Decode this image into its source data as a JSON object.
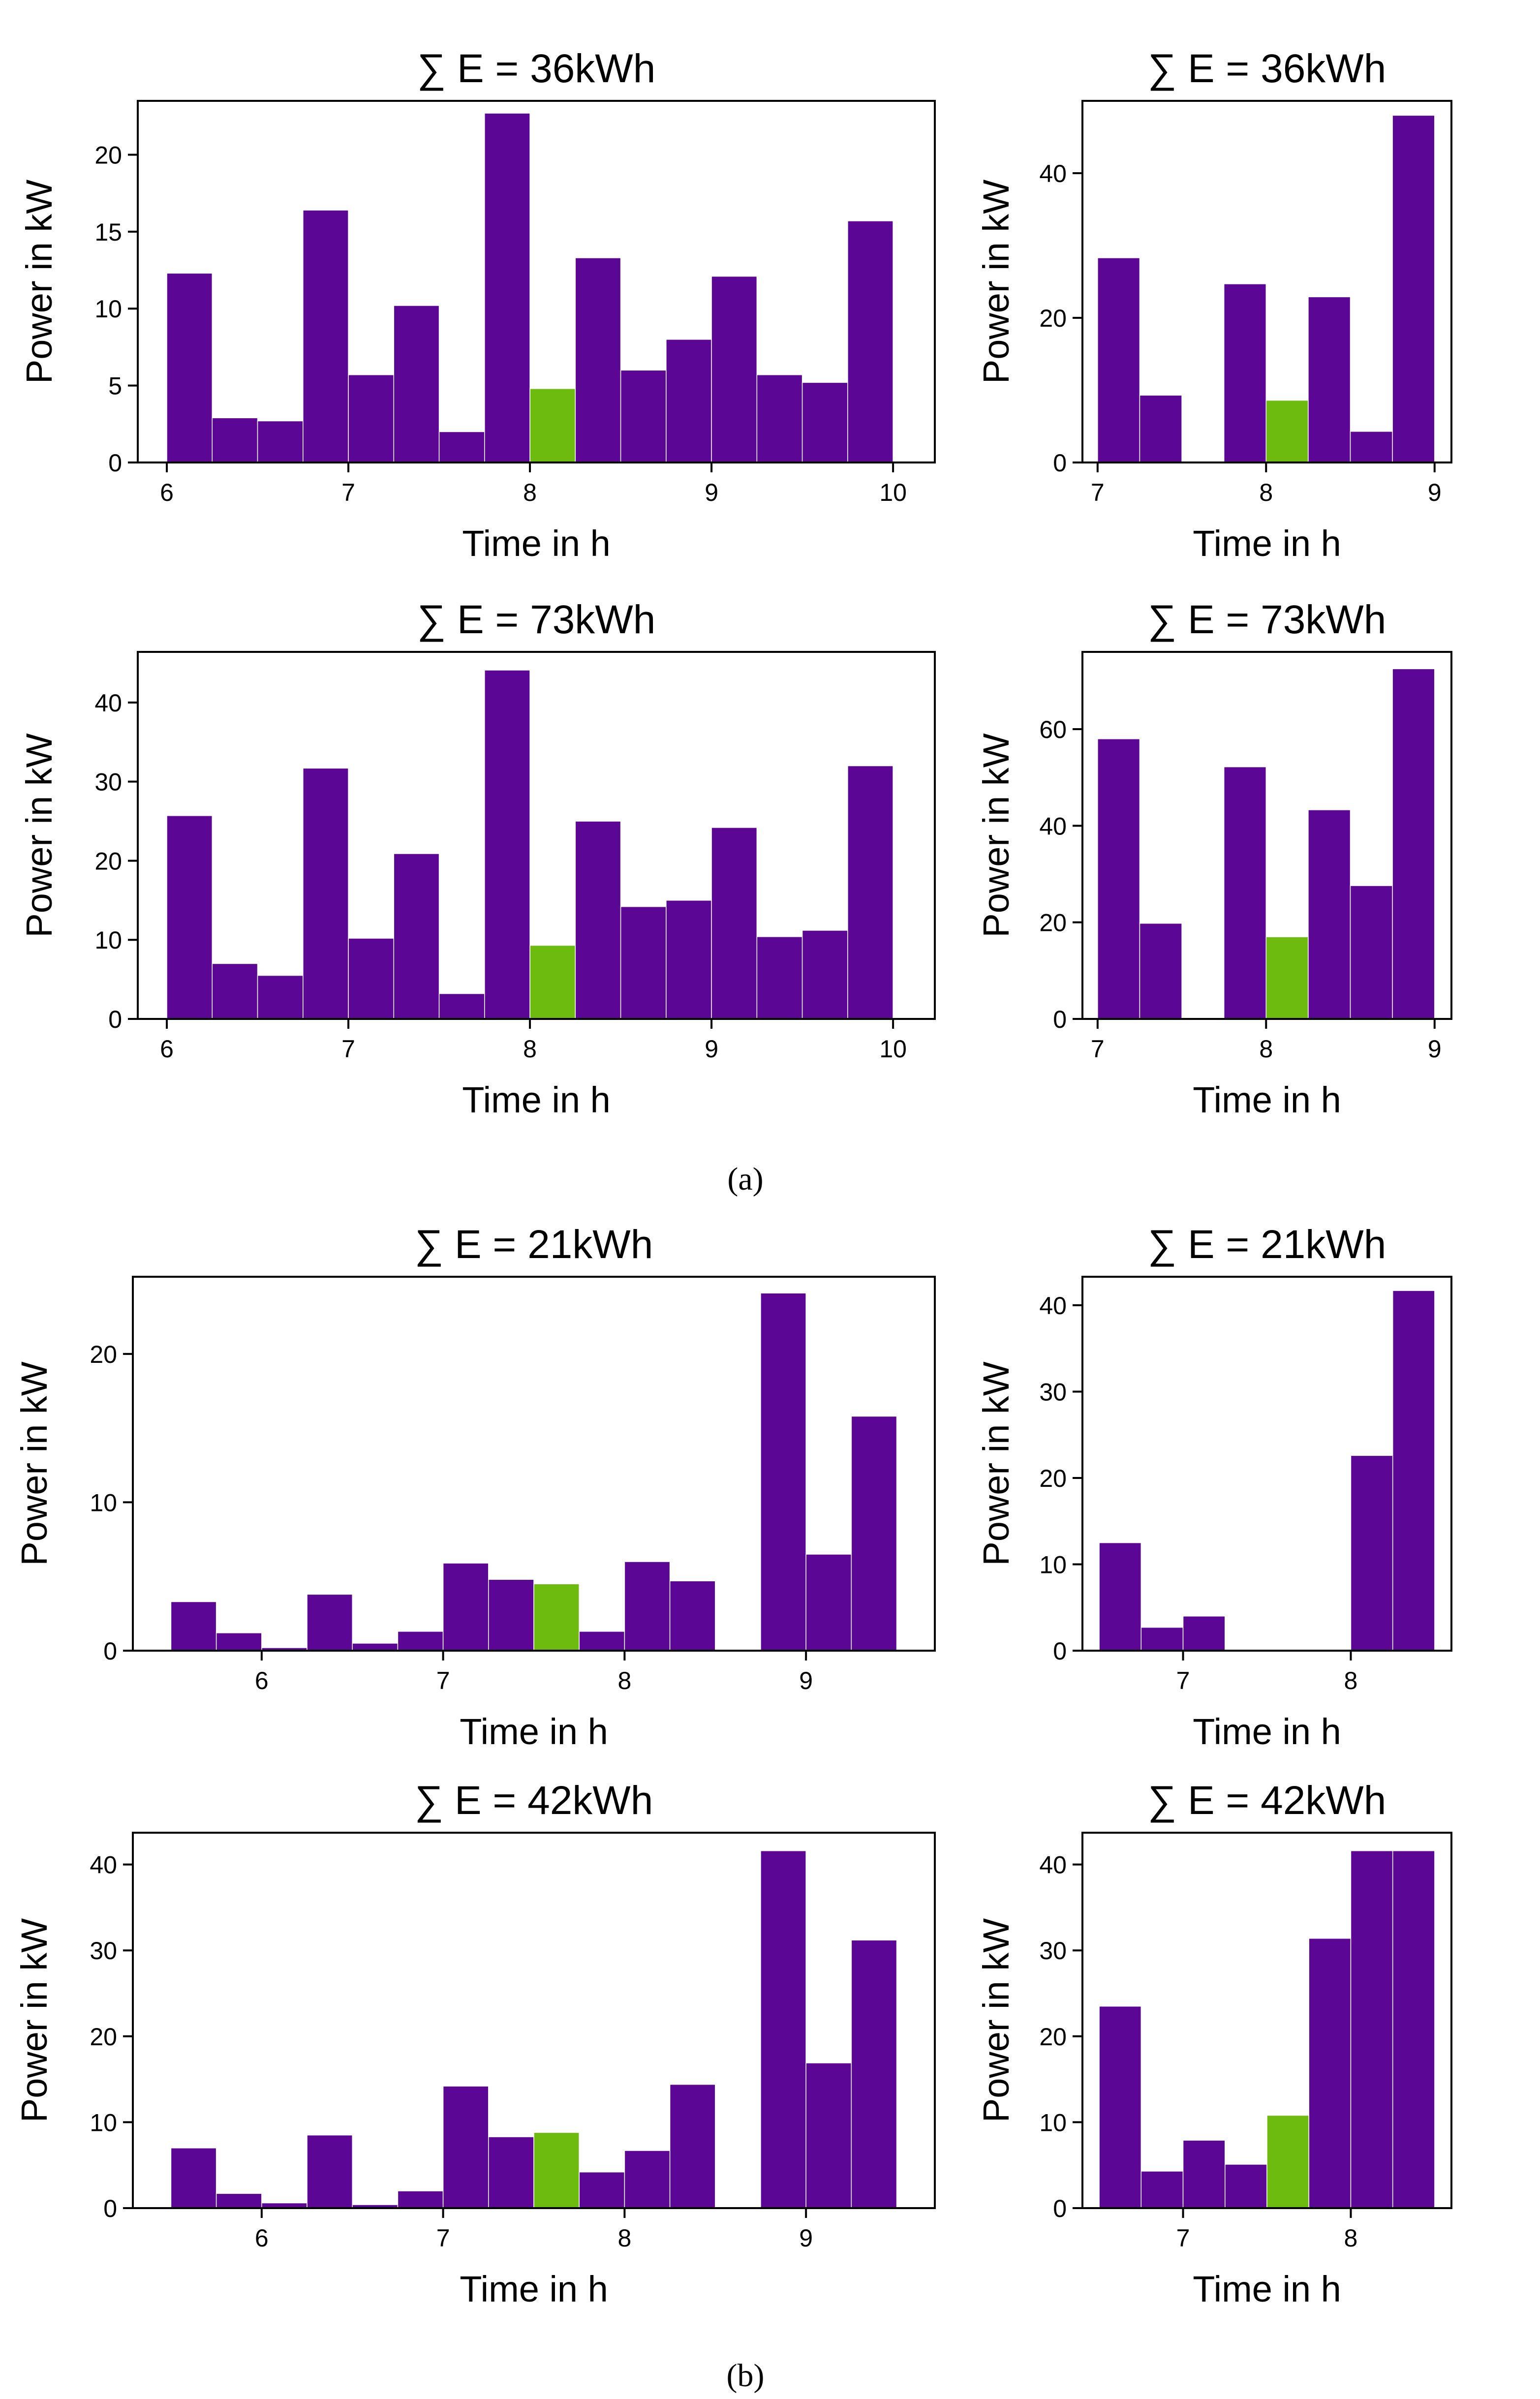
{
  "colors": {
    "bar": "#5c0696",
    "highlight": "#6dbb0e",
    "axis": "#000000",
    "background": "#ffffff"
  },
  "panel_captions": {
    "a": "(a)",
    "b": "(b)"
  },
  "chart_data": [
    {
      "type": "bar",
      "panel": "a",
      "title": "∑ E = 36kWh",
      "xlabel": "Time in h",
      "ylabel": "Power in kW",
      "xlim": [
        5.84,
        10.23
      ],
      "ylim": [
        0,
        23.5
      ],
      "xticks": [
        6,
        7,
        8,
        9,
        10
      ],
      "yticks": [
        0,
        5,
        10,
        15,
        20
      ],
      "bin_width": 0.25,
      "highlight_index": 8,
      "x": [
        6.0,
        6.25,
        6.5,
        6.75,
        7.0,
        7.25,
        7.5,
        7.75,
        8.0,
        8.25,
        8.5,
        8.75,
        9.0,
        9.25,
        9.5,
        9.75
      ],
      "values": [
        12.3,
        2.9,
        2.7,
        16.4,
        5.7,
        10.2,
        2.0,
        22.7,
        4.8,
        13.3,
        6.0,
        8.0,
        12.1,
        5.7,
        5.2,
        15.7
      ]
    },
    {
      "type": "bar",
      "panel": "a",
      "title": "∑ E = 36kWh",
      "xlabel": "Time in h",
      "ylabel": "Power in kW",
      "xlim": [
        6.91,
        9.1
      ],
      "ylim": [
        0,
        50
      ],
      "xticks": [
        7,
        8,
        9
      ],
      "yticks": [
        0,
        20,
        40
      ],
      "bin_width": 0.25,
      "highlight_index": 4,
      "x": [
        7.0,
        7.25,
        7.5,
        7.75,
        8.0,
        8.25,
        8.5,
        8.75
      ],
      "values": [
        28.3,
        9.3,
        0,
        24.7,
        8.6,
        22.9,
        4.3,
        48.0
      ]
    },
    {
      "type": "bar",
      "panel": "a",
      "title": "∑ E = 73kWh",
      "xlabel": "Time in h",
      "ylabel": "Power in kW",
      "xlim": [
        5.84,
        10.23
      ],
      "ylim": [
        0,
        46.4
      ],
      "xticks": [
        6,
        7,
        8,
        9,
        10
      ],
      "yticks": [
        0,
        10,
        20,
        30,
        40
      ],
      "bin_width": 0.25,
      "highlight_index": 8,
      "x": [
        6.0,
        6.25,
        6.5,
        6.75,
        7.0,
        7.25,
        7.5,
        7.75,
        8.0,
        8.25,
        8.5,
        8.75,
        9.0,
        9.25,
        9.5,
        9.75
      ],
      "values": [
        25.7,
        7.0,
        5.5,
        31.7,
        10.2,
        20.9,
        3.2,
        44.1,
        9.3,
        25.0,
        14.2,
        15.0,
        24.2,
        10.4,
        11.2,
        32.0
      ]
    },
    {
      "type": "bar",
      "panel": "a",
      "title": "∑ E = 73kWh",
      "xlabel": "Time in h",
      "ylabel": "Power in kW",
      "xlim": [
        6.91,
        9.1
      ],
      "ylim": [
        0,
        76
      ],
      "xticks": [
        7,
        8,
        9
      ],
      "yticks": [
        0,
        20,
        40,
        60
      ],
      "bin_width": 0.25,
      "highlight_index": 4,
      "x": [
        7.0,
        7.25,
        7.5,
        7.75,
        8.0,
        8.25,
        8.5,
        8.75
      ],
      "values": [
        58.0,
        19.8,
        0,
        52.2,
        17.0,
        43.3,
        27.6,
        72.5
      ]
    },
    {
      "type": "bar",
      "panel": "b",
      "title": "∑ E = 21kWh",
      "xlabel": "Time in h",
      "ylabel": "Power in kW",
      "xlim": [
        5.29,
        9.71
      ],
      "ylim": [
        0,
        25.2
      ],
      "xticks": [
        6,
        7,
        8,
        9
      ],
      "yticks": [
        0,
        10,
        20
      ],
      "bin_width": 0.25,
      "highlight_index": 8,
      "x": [
        5.5,
        5.75,
        6.0,
        6.25,
        6.5,
        6.75,
        7.0,
        7.25,
        7.5,
        7.75,
        8.0,
        8.25,
        8.5,
        8.75,
        9.0,
        9.25
      ],
      "values": [
        3.3,
        1.2,
        0.2,
        3.8,
        0.5,
        1.3,
        5.9,
        4.8,
        4.5,
        1.3,
        6.0,
        4.7,
        0,
        24.1,
        6.5,
        15.8
      ]
    },
    {
      "type": "bar",
      "panel": "b",
      "title": "∑ E = 21kWh",
      "xlabel": "Time in h",
      "ylabel": "Power in kW",
      "xlim": [
        6.4,
        8.6
      ],
      "ylim": [
        0,
        43.3
      ],
      "xticks": [
        7,
        8
      ],
      "yticks": [
        0,
        10,
        20,
        30,
        40
      ],
      "bin_width": 0.25,
      "highlight_index": -1,
      "x": [
        6.5,
        6.75,
        7.0,
        7.25,
        7.5,
        7.75,
        8.0,
        8.25
      ],
      "values": [
        12.5,
        2.7,
        4.0,
        0,
        0,
        0,
        22.6,
        41.7
      ]
    },
    {
      "type": "bar",
      "panel": "b",
      "title": "∑ E = 42kWh",
      "xlabel": "Time in h",
      "ylabel": "Power in kW",
      "xlim": [
        5.29,
        9.71
      ],
      "ylim": [
        0,
        43.7
      ],
      "xticks": [
        6,
        7,
        8,
        9
      ],
      "yticks": [
        0,
        10,
        20,
        30,
        40
      ],
      "bin_width": 0.25,
      "highlight_index": 8,
      "x": [
        5.5,
        5.75,
        6.0,
        6.25,
        6.5,
        6.75,
        7.0,
        7.25,
        7.5,
        7.75,
        8.0,
        8.25,
        8.5,
        8.75,
        9.0,
        9.25
      ],
      "values": [
        7.0,
        1.7,
        0.6,
        8.5,
        0.4,
        2.0,
        14.2,
        8.3,
        8.8,
        4.2,
        6.7,
        14.4,
        0,
        41.6,
        16.9,
        31.2
      ]
    },
    {
      "type": "bar",
      "panel": "b",
      "title": "∑ E = 42kWh",
      "xlabel": "Time in h",
      "ylabel": "Power in kW",
      "xlim": [
        6.4,
        8.6
      ],
      "ylim": [
        0,
        43.7
      ],
      "xticks": [
        7,
        8
      ],
      "yticks": [
        0,
        10,
        20,
        30,
        40
      ],
      "bin_width": 0.25,
      "highlight_index": 4,
      "x": [
        6.5,
        6.75,
        7.0,
        7.25,
        7.5,
        7.75,
        8.0,
        8.25
      ],
      "values": [
        23.5,
        4.3,
        7.9,
        5.1,
        10.8,
        31.4,
        41.6,
        41.6
      ]
    }
  ]
}
